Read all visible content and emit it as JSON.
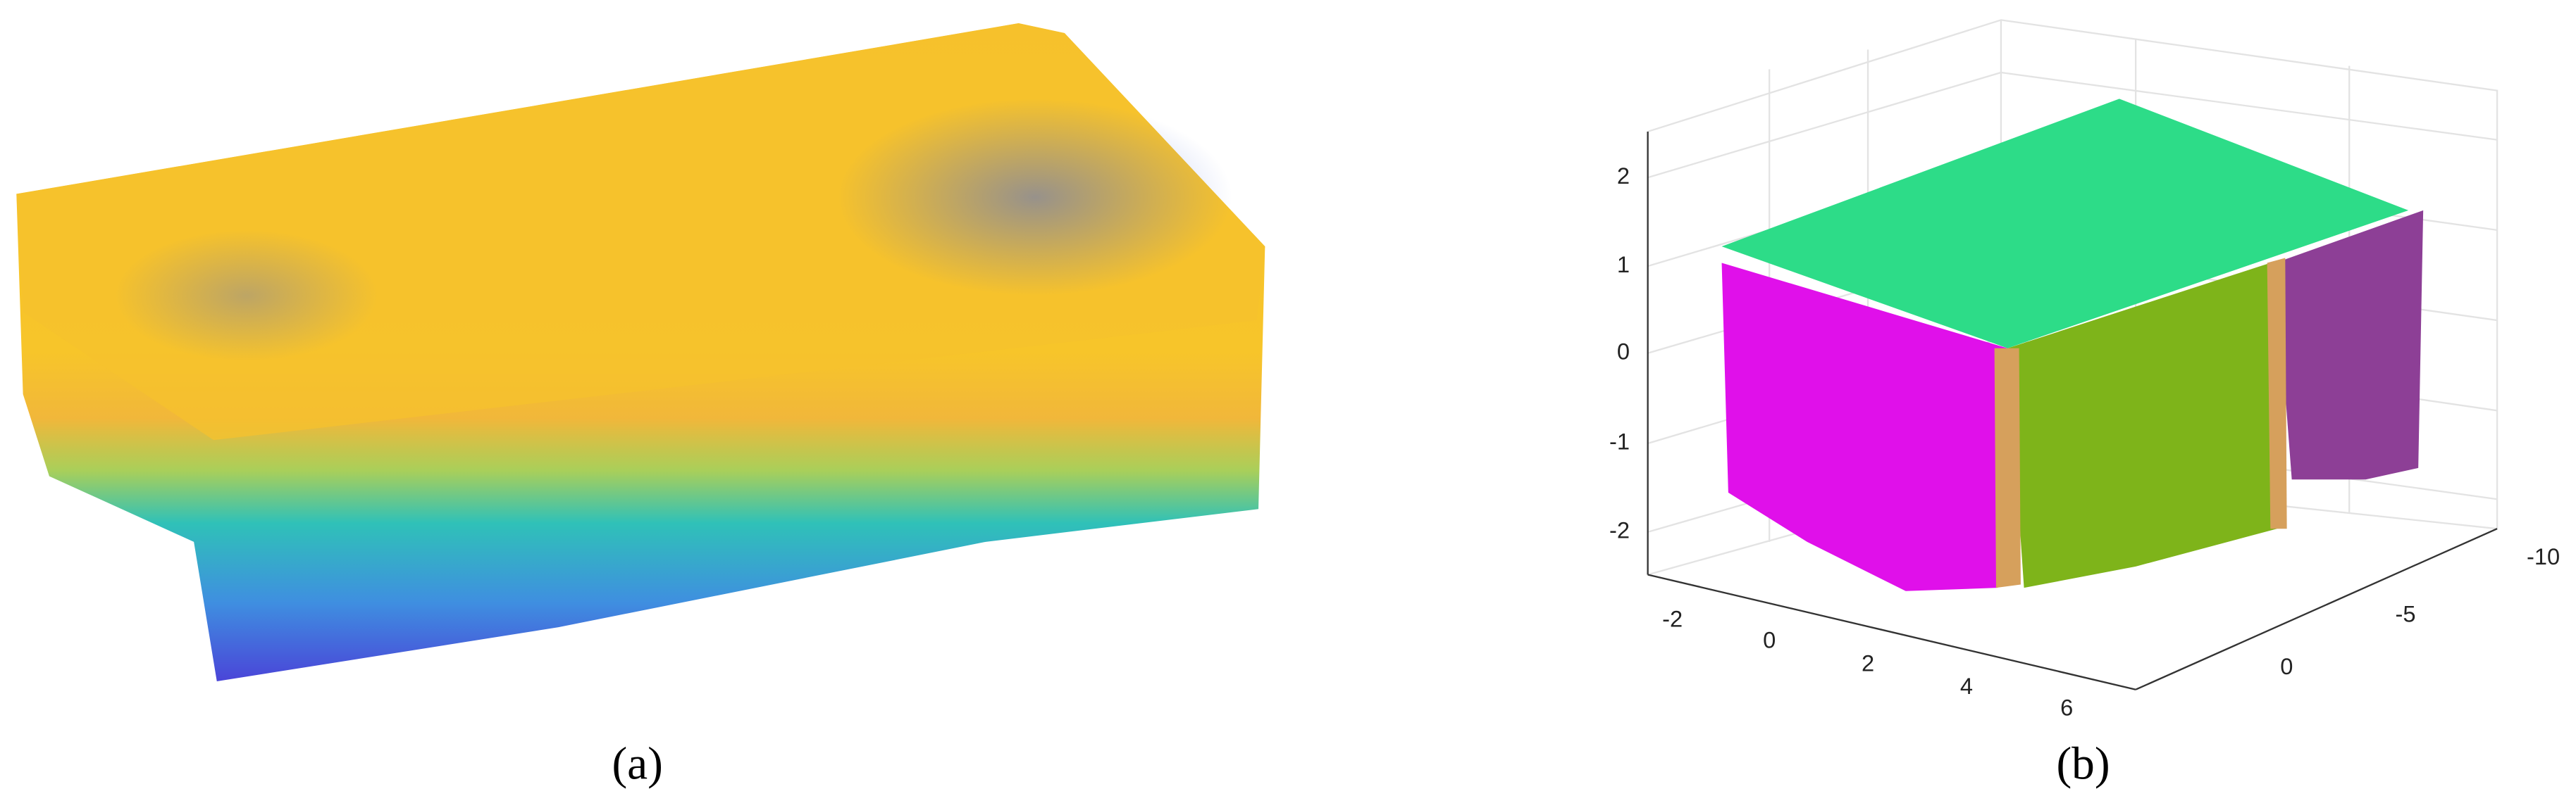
{
  "panels": [
    {
      "label": "(a)"
    },
    {
      "label": "(b)",
      "axes": {
        "z_ticks": [
          2,
          1,
          0,
          -1,
          -2
        ],
        "x_ticks": [
          -2,
          0,
          2,
          4,
          6
        ],
        "y_ticks": [
          -10,
          -5,
          0
        ]
      }
    }
  ]
}
